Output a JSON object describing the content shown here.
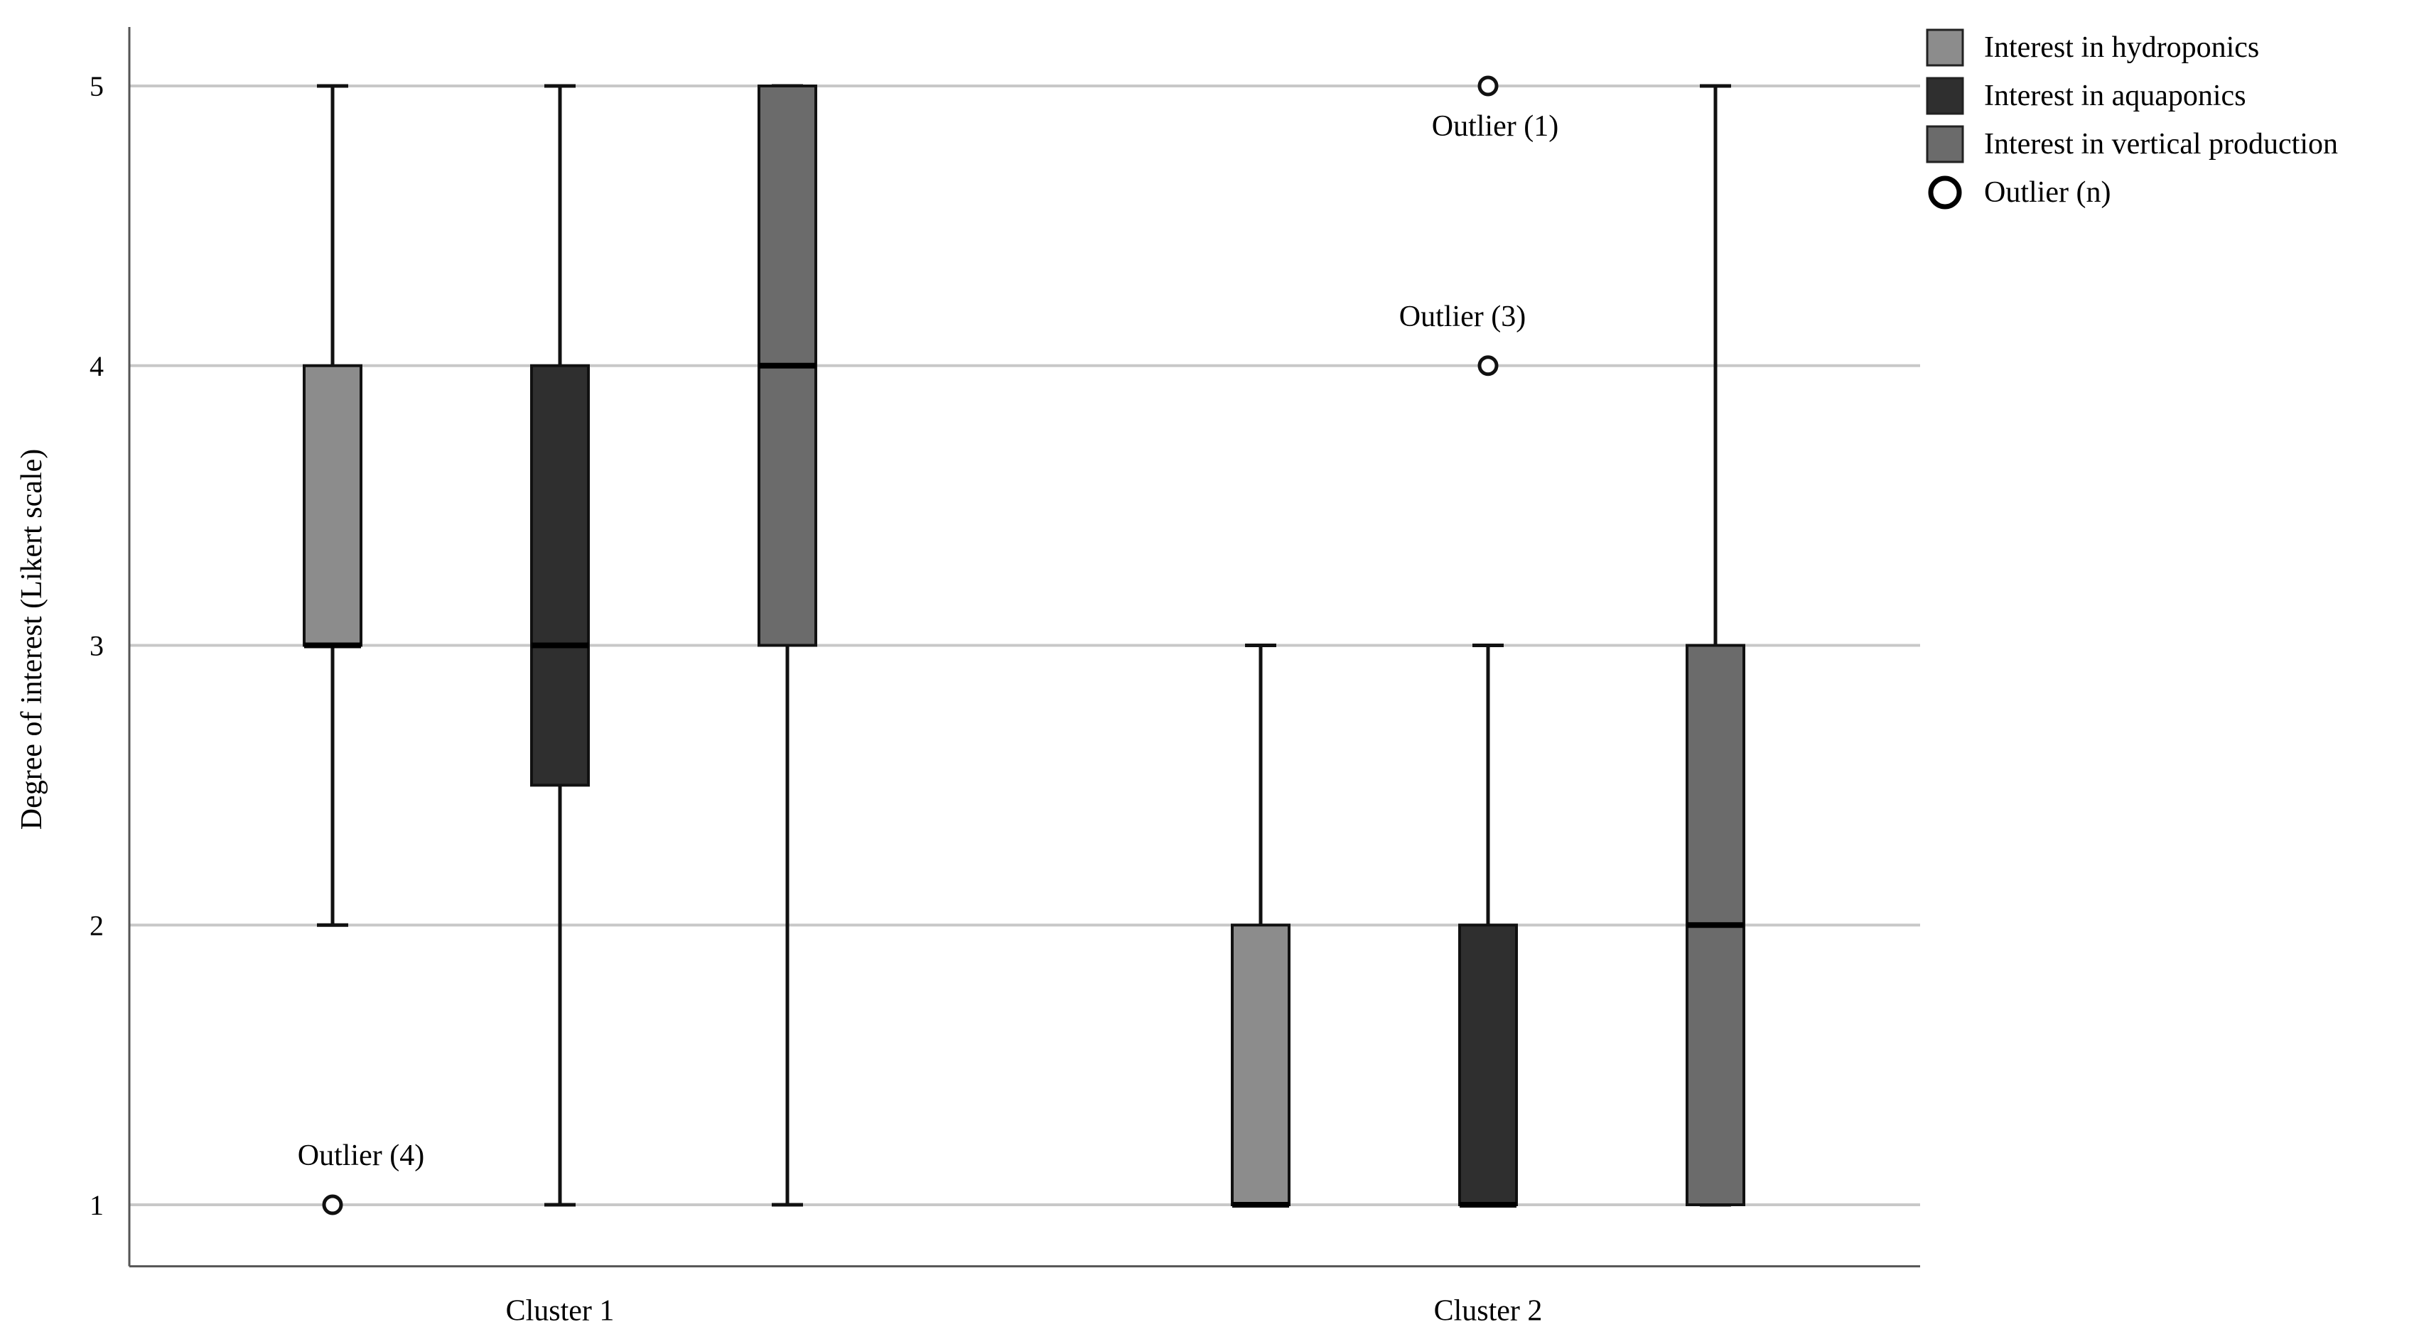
{
  "chart_data": {
    "type": "boxplot",
    "ylabel": "Degree of interest (Likert scale)",
    "xlabel": "",
    "ylim": [
      0.78,
      5.3
    ],
    "yticks": [
      1,
      2,
      3,
      4,
      5
    ],
    "grid": "horizontal",
    "legend_position": "top-right",
    "categories": [
      "Cluster 1",
      "Cluster 2"
    ],
    "series": [
      {
        "name": "Interest in hydroponics",
        "color": "#8c8c8c",
        "boxes": [
          {
            "category": "Cluster 1",
            "min": 2,
            "q1": 3,
            "median": 3,
            "q3": 4,
            "max": 5
          },
          {
            "category": "Cluster 2",
            "min": 1,
            "q1": 1,
            "median": 1,
            "q3": 2,
            "max": 3
          }
        ]
      },
      {
        "name": "Interest in aquaponics",
        "color": "#2f2f2f",
        "boxes": [
          {
            "category": "Cluster 1",
            "min": 1,
            "q1": 2.5,
            "median": 3,
            "q3": 4,
            "max": 5
          },
          {
            "category": "Cluster 2",
            "min": 1,
            "q1": 1,
            "median": 1,
            "q3": 2,
            "max": 3
          }
        ]
      },
      {
        "name": "Interest in vertical production",
        "color": "#6b6b6b",
        "boxes": [
          {
            "category": "Cluster 1",
            "min": 1,
            "q1": 3,
            "median": 4,
            "q3": 5,
            "max": 5
          },
          {
            "category": "Cluster 2",
            "min": 1,
            "q1": 1,
            "median": 2,
            "q3": 3,
            "max": 5
          }
        ]
      }
    ],
    "outliers": [
      {
        "category": "Cluster 1",
        "series": "Interest in hydroponics",
        "value": 1,
        "label": "Outlier (4)"
      },
      {
        "category": "Cluster 2",
        "series": "Interest in aquaponics",
        "value": 5,
        "label": "Outlier (1)"
      },
      {
        "category": "Cluster 2",
        "series": "Interest in aquaponics",
        "value": 4,
        "label": "Outlier (3)"
      }
    ],
    "legend": [
      {
        "label": "Interest in hydroponics",
        "type": "box",
        "color": "#8c8c8c"
      },
      {
        "label": "Interest in aquaponics",
        "type": "box",
        "color": "#2f2f2f"
      },
      {
        "label": "Interest in vertical production",
        "type": "box",
        "color": "#6b6b6b"
      },
      {
        "label": "Outlier (n)",
        "type": "circle"
      }
    ]
  }
}
